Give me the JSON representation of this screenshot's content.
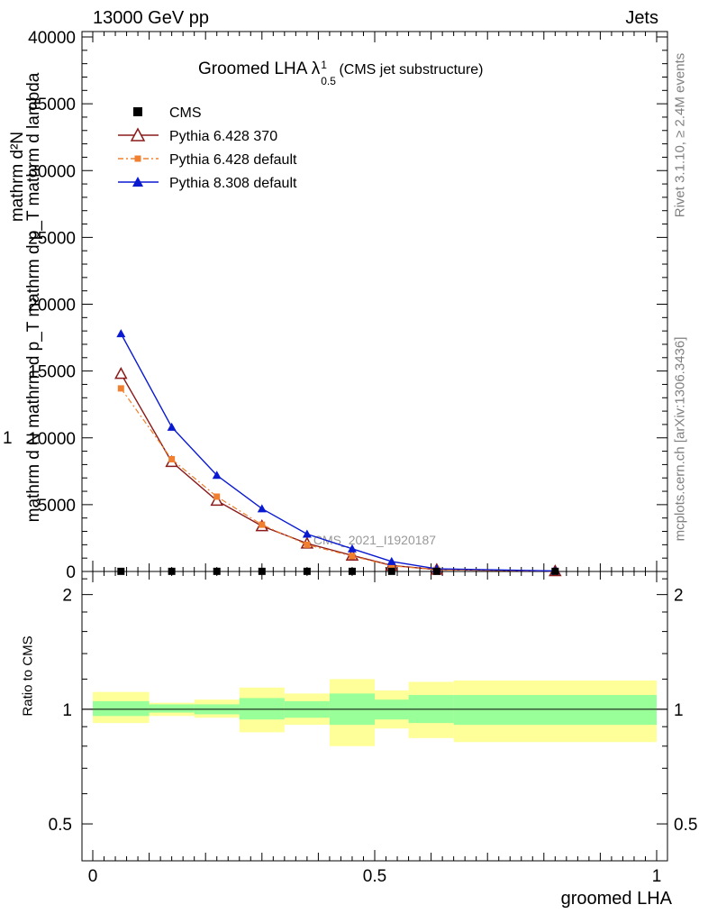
{
  "header": {
    "left": "13000 GeV pp",
    "right": "Jets"
  },
  "side_labels": {
    "rivet": "Rivet 3.1.10, ≥ 2.4M events",
    "mcplots": "mcplots.cern.ch [arXiv:1306.3436]"
  },
  "chart_data": {
    "type": "line",
    "title": "Groomed LHA",
    "title_symbol": "λ",
    "title_sup": "1",
    "title_sub": "0.5",
    "title_note": "(CMS jet substructure)",
    "watermark": "CMS_2021_I1920187",
    "xlabel": "groomed LHA",
    "ylabel_main_top": "mathrm d²N",
    "ylabel_main_bottom": "mathrm d N mathrm d p_T mathrm d p_T mathrm d lambda",
    "ylabel_main_prefix": "1",
    "ylabel_ratio": "Ratio to CMS",
    "xlim": [
      0,
      1
    ],
    "ylim_main": [
      0,
      40000
    ],
    "ylim_ratio": [
      0.4,
      2.3
    ],
    "x_ticks": [
      "0",
      "0.5",
      "1"
    ],
    "y_ticks_main": [
      "0",
      "5000",
      "10000",
      "15000",
      "20000",
      "25000",
      "30000",
      "35000",
      "40000"
    ],
    "y_ticks_ratio": [
      "0.5",
      "1",
      "2"
    ],
    "legend_position": "top-left",
    "bins": [
      [
        0.0,
        0.1
      ],
      [
        0.1,
        0.18
      ],
      [
        0.18,
        0.26
      ],
      [
        0.26,
        0.34
      ],
      [
        0.34,
        0.42
      ],
      [
        0.42,
        0.5
      ],
      [
        0.5,
        0.56
      ],
      [
        0.56,
        0.64
      ],
      [
        0.64,
        1.0
      ]
    ],
    "x": [
      0.05,
      0.14,
      0.22,
      0.3,
      0.38,
      0.46,
      0.53,
      0.61,
      0.82
    ],
    "series": [
      {
        "name": "CMS",
        "color": "#000000",
        "marker": "square",
        "values": [
          10,
          10,
          10,
          10,
          10,
          10,
          10,
          10,
          10
        ]
      },
      {
        "name": "Pythia 6.428 370",
        "color": "#8b1a1a",
        "marker": "open-triangle",
        "dash": "solid",
        "values": [
          14800,
          8200,
          5300,
          3400,
          2100,
          1200,
          450,
          140,
          30
        ]
      },
      {
        "name": "Pythia 6.428 default",
        "color": "#f08030",
        "marker": "square",
        "dash": "dashdot",
        "values": [
          13700,
          8400,
          5600,
          3500,
          2000,
          1150,
          420,
          130,
          30
        ]
      },
      {
        "name": "Pythia 8.308 default",
        "color": "#0a1ad0",
        "marker": "filled-triangle",
        "dash": "solid",
        "values": [
          17800,
          10800,
          7200,
          4700,
          2800,
          1700,
          750,
          200,
          40
        ]
      }
    ],
    "ratio_bands": {
      "outer_color": "#ffff99",
      "inner_color": "#99ff99",
      "outer": [
        [
          0.92,
          1.11
        ],
        [
          0.96,
          1.04
        ],
        [
          0.95,
          1.06
        ],
        [
          0.87,
          1.14
        ],
        [
          0.91,
          1.1
        ],
        [
          0.8,
          1.2
        ],
        [
          0.89,
          1.12
        ],
        [
          0.84,
          1.18
        ],
        [
          0.82,
          1.19
        ]
      ],
      "inner": [
        [
          0.96,
          1.05
        ],
        [
          0.98,
          1.03
        ],
        [
          0.97,
          1.03
        ],
        [
          0.94,
          1.07
        ],
        [
          0.95,
          1.05
        ],
        [
          0.91,
          1.1
        ],
        [
          0.94,
          1.06
        ],
        [
          0.92,
          1.09
        ],
        [
          0.91,
          1.09
        ]
      ]
    }
  }
}
